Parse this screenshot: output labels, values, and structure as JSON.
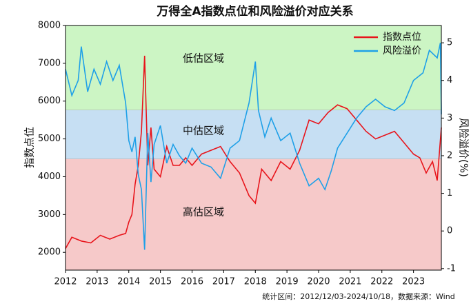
{
  "chart_data": {
    "type": "line",
    "title": "万得全A指数点位和风险溢价对应关系",
    "y_label": "指数点位",
    "y2_label": "风险溢价(%)",
    "footer": "统计区间：2012/12/03-2024/10/18，数据来源：Wind",
    "xlim": [
      2012,
      2023.88
    ],
    "xticks": [
      2012,
      2013,
      2014,
      2015,
      2016,
      2017,
      2018,
      2019,
      2020,
      2021,
      2022,
      2023
    ],
    "ylim": [
      1530,
      8000
    ],
    "yticks": [
      2000,
      3000,
      4000,
      5000,
      6000,
      7000,
      8000
    ],
    "y2lim": [
      -1.04,
      5.46
    ],
    "y2ticks": [
      -1,
      0,
      1,
      2,
      3,
      4,
      5
    ],
    "legend": "upper right",
    "zones": [
      {
        "label": "低估区域",
        "from": 3.21,
        "to": 5.46,
        "color": "#ccf5c4"
      },
      {
        "label": "中估区域",
        "from": 1.91,
        "to": 3.21,
        "color": "#c6dff3"
      },
      {
        "label": "高估区域",
        "from": -1.04,
        "to": 1.91,
        "color": "#f6c9c9"
      }
    ],
    "series": [
      {
        "name": "指数点位",
        "color": "#e8141b",
        "x": [
          2012.0,
          2012.2,
          2012.5,
          2012.8,
          2013.1,
          2013.4,
          2013.7,
          2013.9,
          2014.0,
          2014.1,
          2014.2,
          2014.3,
          2014.4,
          2014.5,
          2014.6,
          2014.7,
          2014.8,
          2015.0,
          2015.2,
          2015.4,
          2015.6,
          2015.8,
          2016.0,
          2016.3,
          2016.6,
          2016.9,
          2017.2,
          2017.5,
          2017.8,
          2018.0,
          2018.2,
          2018.5,
          2018.8,
          2019.1,
          2019.4,
          2019.7,
          2020.0,
          2020.3,
          2020.6,
          2020.9,
          2021.2,
          2021.5,
          2021.8,
          2022.1,
          2022.4,
          2022.7,
          2023.0,
          2023.2,
          2023.4,
          2023.6,
          2023.75,
          2023.88
        ],
        "values": [
          2100,
          2400,
          2300,
          2250,
          2450,
          2350,
          2450,
          2500,
          2800,
          3000,
          3800,
          4300,
          5200,
          7200,
          4300,
          5300,
          4200,
          4000,
          4800,
          4300,
          4300,
          4500,
          4300,
          4600,
          4700,
          4800,
          4400,
          4100,
          3500,
          3300,
          4200,
          3900,
          4400,
          4200,
          4700,
          5500,
          5400,
          5700,
          5900,
          5800,
          5500,
          5200,
          5000,
          5100,
          5200,
          4900,
          4600,
          4500,
          4100,
          4400,
          3900,
          5300
        ]
      },
      {
        "name": "风险溢价",
        "color": "#1ea0e8",
        "axis": "y2",
        "x": [
          2012.0,
          2012.2,
          2012.4,
          2012.5,
          2012.7,
          2012.9,
          2013.1,
          2013.3,
          2013.5,
          2013.7,
          2013.9,
          2014.0,
          2014.1,
          2014.2,
          2014.3,
          2014.4,
          2014.5,
          2014.6,
          2014.7,
          2014.8,
          2015.0,
          2015.2,
          2015.4,
          2015.6,
          2015.8,
          2016.0,
          2016.3,
          2016.6,
          2016.9,
          2017.2,
          2017.5,
          2017.8,
          2018.0,
          2018.1,
          2018.3,
          2018.5,
          2018.8,
          2019.1,
          2019.4,
          2019.7,
          2020.0,
          2020.2,
          2020.4,
          2020.6,
          2020.9,
          2021.2,
          2021.5,
          2021.8,
          2022.1,
          2022.4,
          2022.7,
          2023.0,
          2023.3,
          2023.5,
          2023.75,
          2023.85,
          2023.88
        ],
        "values": [
          4.3,
          3.6,
          4.0,
          4.9,
          3.7,
          4.3,
          3.9,
          4.5,
          4.0,
          4.4,
          3.4,
          2.4,
          2.1,
          2.5,
          1.5,
          1.1,
          -0.5,
          2.6,
          1.3,
          2.3,
          2.8,
          1.8,
          2.3,
          2.0,
          1.8,
          2.2,
          1.8,
          1.7,
          1.4,
          2.2,
          2.4,
          3.4,
          4.5,
          3.2,
          2.5,
          3.0,
          2.4,
          2.6,
          1.8,
          1.2,
          1.4,
          1.1,
          1.6,
          2.2,
          2.6,
          3.0,
          3.3,
          3.5,
          3.3,
          3.2,
          3.4,
          4.0,
          4.2,
          4.8,
          4.6,
          5.0,
          3.1
        ]
      }
    ]
  }
}
